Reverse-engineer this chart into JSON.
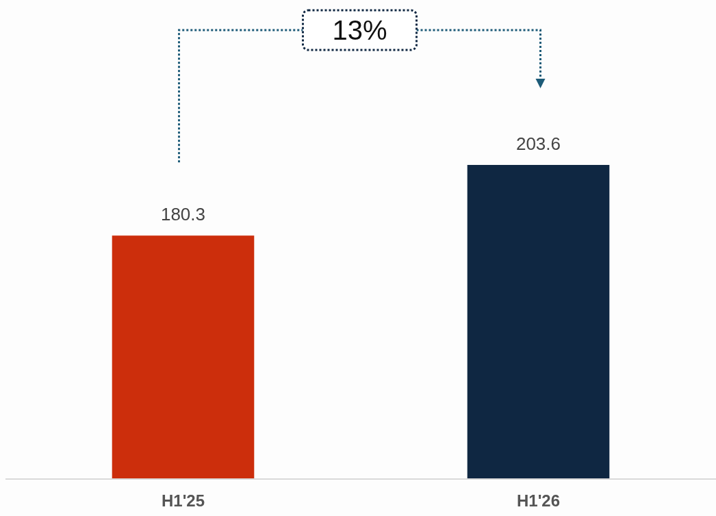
{
  "chart_data": {
    "type": "bar",
    "categories": [
      "H1'25",
      "H1'26"
    ],
    "values": [
      180.3,
      203.6
    ],
    "colors": [
      "#cc2e0c",
      "#0f2742"
    ],
    "ylim": [
      100,
      258
    ],
    "tick_labels": "x",
    "data_labels": true,
    "annotations": [
      "13%"
    ]
  }
}
